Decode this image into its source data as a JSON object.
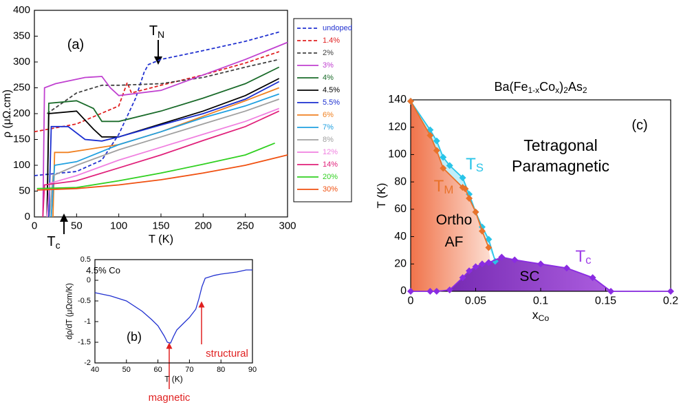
{
  "chart_data": [
    {
      "type": "line",
      "xlabel": "T (K)",
      "ylabel": "ρ (μΩ.cm)",
      "xlim": [
        0,
        300
      ],
      "ylim": [
        0,
        400
      ],
      "xticks": [
        0,
        50,
        100,
        150,
        200,
        250,
        300
      ],
      "yticks": [
        0,
        50,
        100,
        150,
        200,
        250,
        300,
        350,
        400
      ],
      "legend": "right",
      "annotations": [
        {
          "text": "(a)"
        },
        {
          "text": "T",
          "sub": "N"
        },
        {
          "text": "T",
          "sub": "c"
        }
      ],
      "series": [
        {
          "name": "undoped",
          "color": "#2030d0",
          "style": "dashed",
          "x": [
            0,
            50,
            80,
            100,
            120,
            130,
            135,
            150,
            200,
            250,
            290
          ],
          "values": [
            80,
            88,
            110,
            160,
            230,
            280,
            295,
            305,
            322,
            340,
            358
          ]
        },
        {
          "name": "1.4%",
          "color": "#e02020",
          "style": "dashed",
          "x": [
            0,
            50,
            100,
            110,
            115,
            150,
            200,
            250,
            290
          ],
          "values": [
            165,
            180,
            215,
            260,
            240,
            255,
            275,
            298,
            320
          ]
        },
        {
          "name": "2%",
          "color": "#404040",
          "style": "dashed",
          "x": [
            15,
            50,
            80,
            100,
            150,
            200,
            250,
            290
          ],
          "values": [
            200,
            240,
            255,
            255,
            258,
            270,
            290,
            305
          ]
        },
        {
          "name": "3%",
          "color": "#c040d0",
          "style": "solid",
          "x": [
            10,
            12,
            25,
            60,
            80,
            90,
            100,
            150,
            200,
            250,
            300
          ],
          "values": [
            0,
            250,
            258,
            270,
            272,
            250,
            235,
            245,
            275,
            305,
            338
          ]
        },
        {
          "name": "4%",
          "color": "#1a6b2a",
          "style": "solid",
          "x": [
            15,
            17,
            50,
            70,
            80,
            100,
            150,
            200,
            250,
            290
          ],
          "values": [
            0,
            220,
            225,
            210,
            185,
            185,
            205,
            230,
            258,
            290
          ]
        },
        {
          "name": "4.5%",
          "color": "#000000",
          "style": "solid",
          "x": [
            15,
            17,
            50,
            70,
            80,
            100,
            150,
            200,
            250,
            290
          ],
          "values": [
            0,
            200,
            205,
            170,
            155,
            155,
            180,
            205,
            235,
            268
          ]
        },
        {
          "name": "5.5%",
          "color": "#1a2ed0",
          "style": "solid",
          "x": [
            17,
            20,
            40,
            60,
            80,
            100,
            150,
            200,
            250,
            290
          ],
          "values": [
            0,
            175,
            175,
            150,
            147,
            155,
            178,
            200,
            228,
            262
          ]
        },
        {
          "name": "6%",
          "color": "#f08020",
          "style": "solid",
          "x": [
            22,
            24,
            40,
            100,
            150,
            200,
            250,
            290
          ],
          "values": [
            0,
            125,
            125,
            140,
            165,
            195,
            225,
            250
          ]
        },
        {
          "name": "7%",
          "color": "#20a0e0",
          "style": "solid",
          "x": [
            20,
            24,
            50,
            100,
            150,
            200,
            250,
            290
          ],
          "values": [
            0,
            100,
            107,
            140,
            165,
            192,
            215,
            238
          ]
        },
        {
          "name": "8%",
          "color": "#a0a0a0",
          "style": "solid",
          "x": [
            18,
            22,
            50,
            100,
            150,
            200,
            250,
            290
          ],
          "values": [
            0,
            80,
            100,
            130,
            155,
            180,
            205,
            228
          ]
        },
        {
          "name": "12%",
          "color": "#f080e0",
          "style": "solid",
          "x": [
            15,
            18,
            50,
            100,
            150,
            200,
            250,
            290
          ],
          "values": [
            0,
            65,
            80,
            110,
            135,
            160,
            185,
            210
          ]
        },
        {
          "name": "14%",
          "color": "#e0207a",
          "style": "solid",
          "x": [
            10,
            12,
            50,
            100,
            150,
            200,
            250,
            290
          ],
          "values": [
            0,
            62,
            70,
            95,
            120,
            148,
            175,
            205
          ]
        },
        {
          "name": "20%",
          "color": "#30d020",
          "style": "solid",
          "x": [
            3,
            50,
            100,
            150,
            200,
            250,
            285
          ],
          "values": [
            55,
            57,
            70,
            85,
            102,
            120,
            143
          ]
        },
        {
          "name": "30%",
          "color": "#f05010",
          "style": "solid",
          "x": [
            3,
            50,
            100,
            150,
            200,
            250,
            300
          ],
          "values": [
            52,
            55,
            62,
            72,
            85,
            100,
            120
          ]
        }
      ]
    },
    {
      "type": "line",
      "xlabel": "T (K)",
      "ylabel": "dρ/dT (μΩcm/K)",
      "xlim": [
        40,
        90
      ],
      "ylim": [
        -2,
        0.5
      ],
      "xticks": [
        40,
        50,
        60,
        70,
        80,
        90
      ],
      "yticks": [
        -2,
        -1.5,
        -1,
        -0.5,
        0,
        0.5
      ],
      "annotations": [
        {
          "text": "4.5% Co"
        },
        {
          "text": "(b)"
        },
        {
          "text": "structural",
          "color": "#e02020"
        },
        {
          "text": "magnetic",
          "color": "#e02020"
        }
      ],
      "series": [
        {
          "color": "#2030d0",
          "style": "solid",
          "x": [
            40,
            45,
            50,
            55,
            58,
            60,
            62,
            63,
            64,
            65,
            66,
            68,
            70,
            72,
            73,
            74,
            75,
            78,
            80,
            85,
            88,
            90
          ],
          "values": [
            -0.3,
            -0.38,
            -0.5,
            -0.75,
            -0.95,
            -1.1,
            -1.35,
            -1.5,
            -1.52,
            -1.35,
            -1.2,
            -1.05,
            -0.9,
            -0.7,
            -0.45,
            -0.15,
            0.05,
            0.12,
            0.15,
            0.2,
            0.25,
            0.25
          ]
        }
      ]
    },
    {
      "type": "line",
      "title": [
        {
          "text": "Ba(Fe"
        },
        {
          "text": "1-x",
          "sub": true
        },
        {
          "text": "Co"
        },
        {
          "text": "x",
          "sub": true
        },
        {
          "text": ")"
        },
        {
          "text": "2",
          "sub": true
        },
        {
          "text": "As"
        },
        {
          "text": "2",
          "sub": true
        }
      ],
      "xlabel": {
        "text": "x",
        "sub": "Co"
      },
      "ylabel": "T (K)",
      "xlim": [
        0,
        0.2
      ],
      "ylim": [
        0,
        140
      ],
      "xticks": [
        0,
        0.05,
        0.1,
        0.15,
        0.2
      ],
      "yticks": [
        0,
        20,
        40,
        60,
        80,
        100,
        120,
        140
      ],
      "marker": "diamond",
      "annotations": [
        {
          "text": "(c)"
        },
        {
          "text": "Tetragonal"
        },
        {
          "text": "Paramagnetic"
        },
        {
          "text": "Ortho"
        },
        {
          "text": "AF"
        },
        {
          "text": "SC"
        },
        {
          "text": "T",
          "sub": "S",
          "color": "#29c4e8"
        },
        {
          "text": "T",
          "sub": "M",
          "color": "#e8722a"
        },
        {
          "text": "T",
          "sub": "c",
          "color": "#a040e8"
        }
      ],
      "series": [
        {
          "color": "#29c4e8",
          "style": "solid",
          "x": [
            0,
            0.015,
            0.02,
            0.025,
            0.03,
            0.04,
            0.045,
            0.05,
            0.055,
            0.06,
            0.065
          ],
          "values": [
            139,
            118,
            110,
            98,
            92,
            83,
            71,
            58,
            47,
            38,
            22
          ]
        },
        {
          "color": "#e8722a",
          "style": "solid",
          "x": [
            0,
            0.015,
            0.02,
            0.025,
            0.04,
            0.042,
            0.045,
            0.05,
            0.055,
            0.06
          ],
          "values": [
            139,
            114,
            103,
            90,
            76,
            75,
            68,
            58,
            44,
            32
          ]
        },
        {
          "color": "#8a2be2",
          "style": "solid",
          "x": [
            0,
            0.015,
            0.02,
            0.03,
            0.04,
            0.045,
            0.05,
            0.055,
            0.06,
            0.07,
            0.08,
            0.1,
            0.12,
            0.14,
            0.154,
            0.2
          ],
          "values": [
            0,
            0,
            0,
            1,
            10,
            15,
            18,
            20,
            21,
            25,
            23,
            20,
            17,
            10,
            0,
            0
          ]
        }
      ]
    }
  ]
}
